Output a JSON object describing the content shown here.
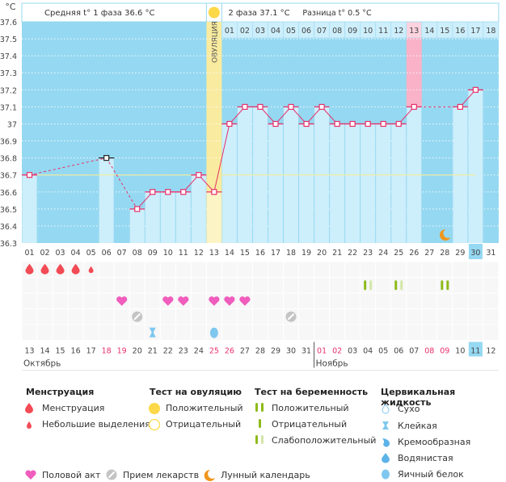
{
  "header": {
    "phase1_label": "Средняя t° 1 фаза",
    "phase1_value": "36.6 °C",
    "phase2_label": "2 фаза",
    "phase2_value": "37.1 °C",
    "diff_label": "Разница t°",
    "diff_value": "0.5 °C"
  },
  "colors": {
    "sky": "#95d8f1",
    "bar": "#cdeefb",
    "line": "#e8306a",
    "ovulation": "#f9eb9f",
    "pink_day": "#f9b2c8",
    "coverline": "#f2eb9a",
    "highlight_day": "#95d8f1",
    "weekend_red": "#e8306a"
  },
  "chart_data": {
    "type": "line",
    "title": "",
    "ylabel": "°C",
    "ylim": [
      36.3,
      37.6
    ],
    "yticks": [
      "36.3",
      "36.4",
      "36.5",
      "36.6",
      "36.7",
      "36.8",
      "36.9",
      "37",
      "37.1",
      "37.2",
      "37.3",
      "37.4",
      "37.5",
      "37.6"
    ],
    "cycle_days": [
      "01",
      "02",
      "03",
      "04",
      "05",
      "06",
      "07",
      "08",
      "09",
      "10",
      "11",
      "12",
      "13",
      "14",
      "15",
      "16",
      "17",
      "18",
      "19",
      "20",
      "21",
      "22",
      "23",
      "24",
      "25",
      "26",
      "27",
      "28",
      "29",
      "30",
      "31"
    ],
    "temperatures": [
      36.7,
      null,
      null,
      null,
      null,
      36.8,
      null,
      36.5,
      36.6,
      36.6,
      36.6,
      36.7,
      36.6,
      37.0,
      37.1,
      37.1,
      37.0,
      37.1,
      37.0,
      37.1,
      37.0,
      37.0,
      37.0,
      37.0,
      37.0,
      37.1,
      null,
      null,
      37.1,
      37.2,
      null
    ],
    "excluded_days": [
      6
    ],
    "coverline": 36.7,
    "ovulation_day": 13,
    "ovulation_label": "ОВУЛЯЦИЯ",
    "post_ovulation_days": [
      "01",
      "02",
      "03",
      "04",
      "05",
      "06",
      "07",
      "08",
      "09",
      "10",
      "11",
      "12",
      "13",
      "14",
      "15",
      "16",
      "17",
      "18"
    ],
    "highlight_post_day": "13",
    "current_cycle_day": "30",
    "moon_day": 28,
    "calendar_dates": [
      "13",
      "14",
      "15",
      "16",
      "17",
      "18",
      "19",
      "20",
      "21",
      "22",
      "23",
      "24",
      "25",
      "26",
      "27",
      "28",
      "29",
      "30",
      "31",
      "01",
      "02",
      "03",
      "04",
      "05",
      "06",
      "07",
      "08",
      "09",
      "10",
      "11",
      "12"
    ],
    "calendar_red_dates_index": [
      5,
      6,
      12,
      13,
      19,
      20,
      26,
      27
    ],
    "today_index": 29,
    "month_labels": [
      {
        "label": "Октябрь",
        "start_index": 0
      },
      {
        "label": "Ноябрь",
        "start_index": 19
      }
    ],
    "symptoms": {
      "menstruation": [
        {
          "day": 1,
          "type": "heavy"
        },
        {
          "day": 2,
          "type": "heavy"
        },
        {
          "day": 3,
          "type": "heavy"
        },
        {
          "day": 4,
          "type": "heavy"
        },
        {
          "day": 5,
          "type": "light"
        }
      ],
      "pregnancy_test": [
        {
          "day": 23,
          "type": "weak"
        },
        {
          "day": 25,
          "type": "weak"
        },
        {
          "day": 28,
          "type": "positive"
        }
      ],
      "intercourse": [
        7,
        10,
        11,
        13,
        14,
        15
      ],
      "medication": [
        8,
        18
      ],
      "cervical_fluid": [
        {
          "day": 9,
          "type": "sticky"
        },
        {
          "day": 13,
          "type": "eggwhite"
        }
      ]
    }
  },
  "legend": {
    "menstruation": {
      "title": "Менструация",
      "items": [
        "Менструация",
        "Небольшие выделения"
      ]
    },
    "ovulation_test": {
      "title": "Тест на овуляцию",
      "items": [
        "Положительный",
        "Отрицательный"
      ]
    },
    "pregnancy_test": {
      "title": "Тест на беременность",
      "items": [
        "Положительный",
        "Отрицательный",
        "Слабоположительный"
      ]
    },
    "cervical_fluid": {
      "title": "Цервикальная жидкость",
      "items": [
        "Сухо",
        "Клейкая",
        "Кремообразная",
        "Водянистая",
        "Яичный белок"
      ]
    },
    "other": [
      "Половой акт",
      "Прием лекарств",
      "Лунный календарь"
    ]
  }
}
